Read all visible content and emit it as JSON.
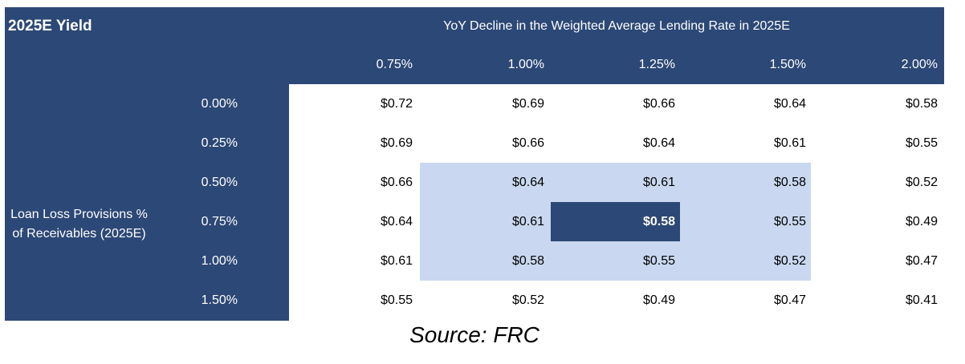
{
  "chart_data": {
    "type": "table",
    "title": "2025E Yield",
    "column_axis_label": "YoY Decline in the Weighted Average Lending Rate in 2025E",
    "row_axis_label": "Loan Loss Provisions % of Receivables (2025E)",
    "columns": [
      "0.75%",
      "1.00%",
      "1.25%",
      "1.50%",
      "2.00%"
    ],
    "rows": [
      "0.00%",
      "0.25%",
      "0.50%",
      "0.75%",
      "1.00%",
      "1.50%"
    ],
    "values": [
      [
        "$0.72",
        "$0.69",
        "$0.66",
        "$0.64",
        "$0.58"
      ],
      [
        "$0.69",
        "$0.66",
        "$0.64",
        "$0.61",
        "$0.55"
      ],
      [
        "$0.66",
        "$0.64",
        "$0.61",
        "$0.58",
        "$0.52"
      ],
      [
        "$0.64",
        "$0.61",
        "$0.58",
        "$0.55",
        "$0.49"
      ],
      [
        "$0.61",
        "$0.58",
        "$0.55",
        "$0.52",
        "$0.47"
      ],
      [
        "$0.55",
        "$0.52",
        "$0.49",
        "$0.47",
        "$0.41"
      ]
    ],
    "highlight_range": {
      "rows": [
        2,
        4
      ],
      "cols": [
        1,
        3
      ]
    },
    "highlight_cell": {
      "row": 3,
      "col": 2
    },
    "colors": {
      "header": "#2c4876",
      "highlight_range": "#c9d8f0",
      "highlight_cell": "#2c4876",
      "header_text": "#ffffff"
    }
  },
  "source": "Source: FRC"
}
